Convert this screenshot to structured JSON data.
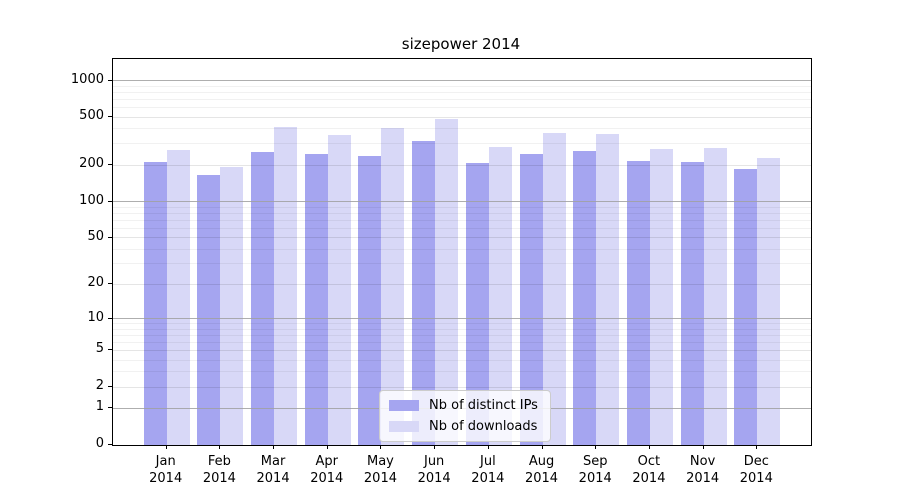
{
  "chart_data": {
    "type": "bar",
    "title": "sizepower 2014",
    "year": "2014",
    "categories": [
      "Jan",
      "Feb",
      "Mar",
      "Apr",
      "May",
      "Jun",
      "Jul",
      "Aug",
      "Sep",
      "Oct",
      "Nov",
      "Dec"
    ],
    "series": [
      {
        "name": "Nb of distinct IPs",
        "color": "#a5a5f0",
        "values": [
          213,
          166,
          257,
          249,
          239,
          317,
          210,
          249,
          262,
          217,
          211,
          186
        ]
      },
      {
        "name": "Nb of downloads",
        "color": "#d8d8f7",
        "values": [
          267,
          193,
          416,
          358,
          409,
          480,
          281,
          368,
          363,
          272,
          276,
          230
        ]
      }
    ],
    "xlabel": "",
    "ylabel": "",
    "scale": "log1p",
    "ylim": [
      0,
      1505
    ],
    "y_ticks": [
      0,
      1,
      2,
      5,
      10,
      20,
      50,
      100,
      200,
      500,
      1000
    ],
    "y_decade_ticks": [
      1,
      10,
      100,
      1000
    ],
    "y_minor_gridlines": [
      3,
      4,
      6,
      7,
      8,
      9,
      30,
      40,
      60,
      70,
      80,
      90,
      300,
      400,
      600,
      700,
      800,
      900
    ],
    "grid": true,
    "legend_position": "lower center"
  }
}
